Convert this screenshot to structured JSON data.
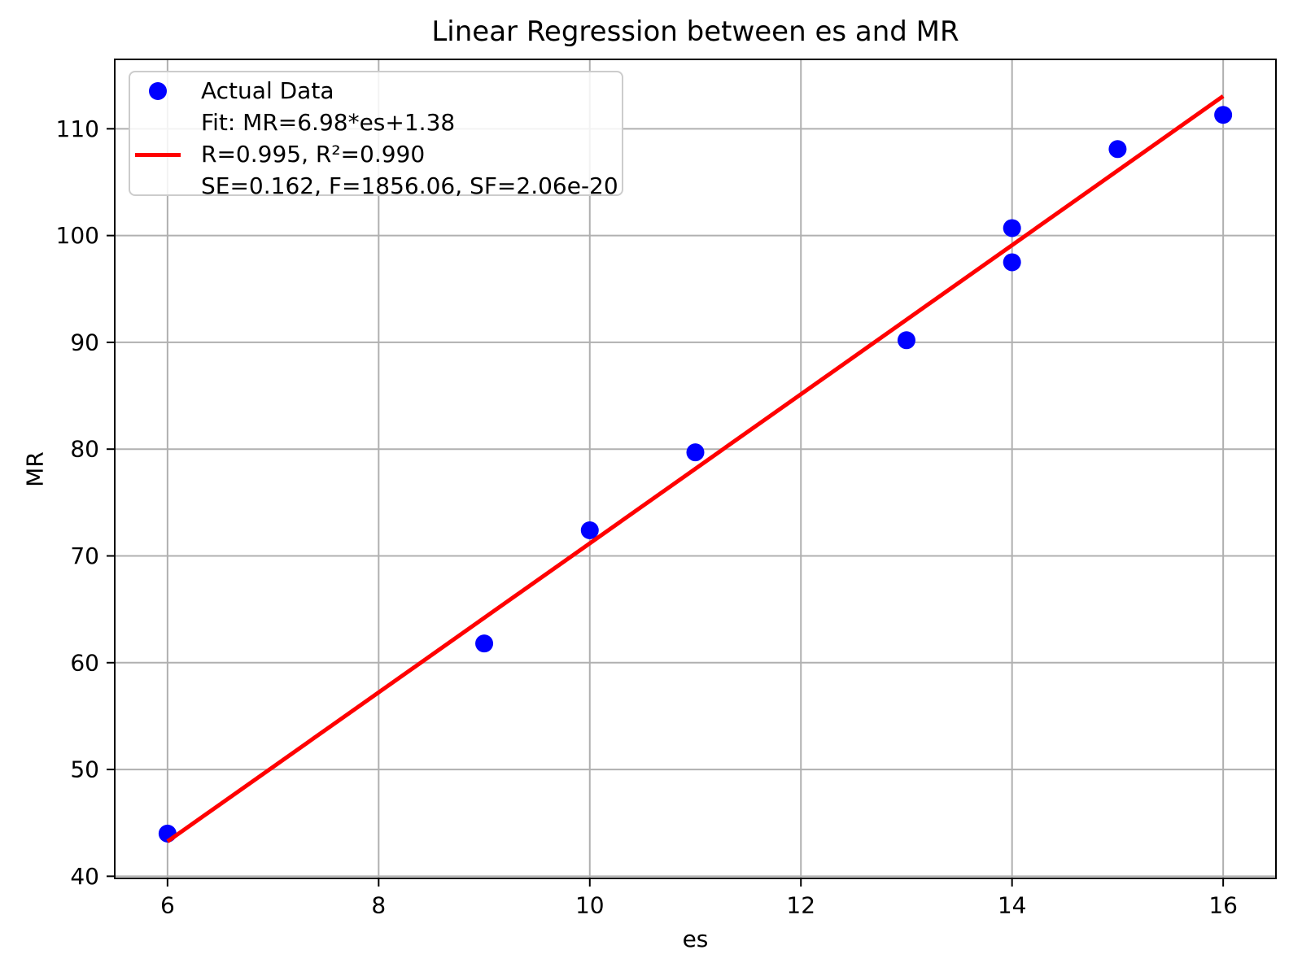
{
  "chart_data": {
    "type": "scatter",
    "title": "Linear Regression between es and MR",
    "xlabel": "es",
    "ylabel": "MR",
    "xlim": [
      5.5,
      16.5
    ],
    "ylim": [
      39.8,
      116.5
    ],
    "xticks": [
      6,
      8,
      10,
      12,
      14,
      16
    ],
    "yticks": [
      40,
      50,
      60,
      70,
      80,
      90,
      100,
      110
    ],
    "grid": true,
    "legend_position": "upper left",
    "series": [
      {
        "name": "Actual Data",
        "type": "scatter",
        "color": "#0000ff",
        "points": [
          [
            6,
            44.0
          ],
          [
            9,
            61.8
          ],
          [
            10,
            72.4
          ],
          [
            11,
            79.7
          ],
          [
            13,
            90.2
          ],
          [
            14,
            97.5
          ],
          [
            14,
            100.7
          ],
          [
            15,
            108.1
          ],
          [
            16,
            111.3
          ]
        ]
      },
      {
        "name": "Fit line",
        "type": "line",
        "color": "#ff0000",
        "slope": 6.98,
        "intercept": 1.38,
        "x_range": [
          6,
          16
        ],
        "points": [
          [
            6,
            43.26
          ],
          [
            16,
            113.06
          ]
        ]
      }
    ],
    "legend": {
      "entries": [
        {
          "marker": "dot",
          "color": "#0000ff",
          "label": "Actual Data"
        },
        {
          "marker": "line",
          "color": "#ff0000",
          "label_lines": [
            "Fit: MR=6.98*es+1.38",
            "R=0.995, R²=0.990",
            "SE=0.162, F=1856.06, SF=2.06e-20"
          ]
        }
      ]
    },
    "stats": {
      "R": "0.995",
      "R2": "0.990",
      "SE": "0.162",
      "F": "1856.06",
      "SF": "2.06e-20"
    },
    "colors": {
      "grid": "#b0b0b0",
      "spine": "#000000",
      "text": "#000000",
      "background": "#ffffff",
      "legend_border": "#cccccc"
    }
  }
}
